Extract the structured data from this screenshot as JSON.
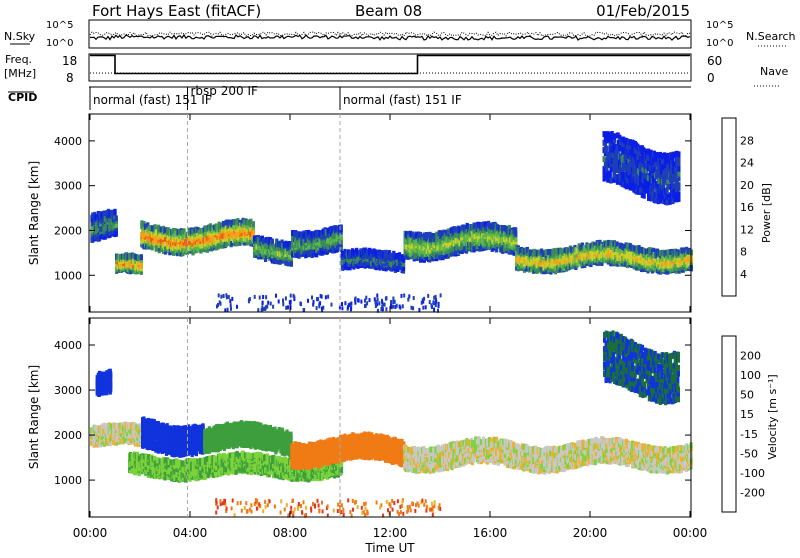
{
  "header": {
    "station": "Fort Hays East (fitACF)",
    "beam": "Beam 08",
    "date": "01/Feb/2015"
  },
  "noise_panel": {
    "left_label": "N.Sky",
    "right_label": "N.Search",
    "left_ticks": [
      "10^5",
      "10^0"
    ],
    "right_ticks": [
      "10^5",
      "10^0"
    ]
  },
  "freq_panel": {
    "left_label_line1": "Freq.",
    "left_label_line2": "[MHz]",
    "right_label": "Nave",
    "left_ticks": [
      18,
      8
    ],
    "right_ticks": [
      60,
      0
    ],
    "freq_steps": [
      {
        "t0": 0.0,
        "t1": 1.0,
        "value": 18
      },
      {
        "t0": 1.0,
        "t1": 13.1,
        "value": 10.5
      },
      {
        "t0": 13.1,
        "t1": 24.0,
        "value": 18
      }
    ]
  },
  "cpid_panel": {
    "label": "CPID",
    "modes": [
      {
        "t": 0.0,
        "label": "normal (fast) 151 IF"
      },
      {
        "t": 3.9,
        "label": "rbsp 200 IF"
      },
      {
        "t": 10.0,
        "label": "normal (fast) 151 IF"
      }
    ],
    "mode_markers": [
      3.9,
      10.0
    ]
  },
  "chart_data": [
    {
      "type": "heatmap",
      "parameter": "power",
      "ylabel": "Slant Range [km]",
      "yticks": [
        1000,
        2000,
        3000,
        4000
      ],
      "ylim": [
        180,
        4600
      ],
      "xlim": [
        0,
        24
      ],
      "colorbar": {
        "label": "Power [dB]",
        "ticks": [
          4,
          8,
          12,
          16,
          20,
          24,
          28
        ],
        "range": [
          0,
          32
        ],
        "colors": [
          "#0a1ee6",
          "#1d3fb8",
          "#3a8a5a",
          "#5cb84c",
          "#c9d22a",
          "#f5a21a",
          "#ee5a14",
          "#e01818"
        ]
      },
      "echo_regions": [
        {
          "t0": 0.0,
          "t1": 1.0,
          "r_center": 2050,
          "r_width": 500,
          "level": 10
        },
        {
          "t0": 1.0,
          "t1": 2.0,
          "r_center": 1200,
          "r_width": 300,
          "level": 22
        },
        {
          "t0": 2.0,
          "t1": 6.5,
          "r_center": 1850,
          "r_width": 450,
          "level": 24
        },
        {
          "t0": 6.5,
          "t1": 8.0,
          "r_center": 1550,
          "r_width": 400,
          "level": 14
        },
        {
          "t0": 8.0,
          "t1": 10.0,
          "r_center": 1800,
          "r_width": 450,
          "level": 12
        },
        {
          "t0": 10.0,
          "t1": 12.5,
          "r_center": 1300,
          "r_width": 300,
          "level": 8
        },
        {
          "t0": 12.5,
          "t1": 17.0,
          "r_center": 1750,
          "r_width": 500,
          "level": 16
        },
        {
          "t0": 17.0,
          "t1": 24.0,
          "r_center": 1400,
          "r_width": 400,
          "level": 20
        },
        {
          "t0": 20.5,
          "t1": 23.5,
          "r_center": 3400,
          "r_width": 1000,
          "level": 6
        }
      ]
    },
    {
      "type": "heatmap",
      "parameter": "velocity",
      "ylabel": "Slant Range [km]",
      "yticks": [
        1000,
        2000,
        3000,
        4000
      ],
      "ylim": [
        180,
        4600
      ],
      "xlim": [
        0,
        24
      ],
      "colorbar": {
        "label": "Velocity [m s⁻¹]",
        "ticks": [
          200,
          100,
          50,
          15,
          -15,
          -50,
          -100,
          -200
        ],
        "colors": [
          "#1033dd",
          "#1a6e3a",
          "#3d9e3d",
          "#7dd33a",
          "#c8c8c8",
          "#f0b02a",
          "#f07a14",
          "#e83418",
          "#dd1010"
        ]
      },
      "echo_regions": [
        {
          "t0": 0.0,
          "t1": 2.0,
          "r_center": 1950,
          "r_width": 350,
          "vel": 0
        },
        {
          "t0": 0.2,
          "t1": 0.8,
          "r_center": 3100,
          "r_width": 400,
          "vel": 200
        },
        {
          "t0": 2.0,
          "t1": 4.5,
          "r_center": 2000,
          "r_width": 550,
          "vel": 200
        },
        {
          "t0": 4.5,
          "t1": 8.0,
          "r_center": 1900,
          "r_width": 450,
          "vel": 60
        },
        {
          "t0": 1.5,
          "t1": 10.0,
          "r_center": 1300,
          "r_width": 350,
          "vel": 30
        },
        {
          "t0": 8.0,
          "t1": 12.5,
          "r_center": 1650,
          "r_width": 450,
          "vel": -60
        },
        {
          "t0": 12.5,
          "t1": 24.0,
          "r_center": 1550,
          "r_width": 450,
          "vel": 0
        },
        {
          "t0": 20.5,
          "t1": 23.5,
          "r_center": 3500,
          "r_width": 1000,
          "vel": 150
        }
      ]
    }
  ],
  "time_axis": {
    "xlabel": "Time UT",
    "ticks": [
      "00:00",
      "04:00",
      "08:00",
      "12:00",
      "16:00",
      "20:00",
      "00:00"
    ],
    "tick_hours": [
      0,
      4,
      8,
      12,
      16,
      20,
      24
    ]
  }
}
